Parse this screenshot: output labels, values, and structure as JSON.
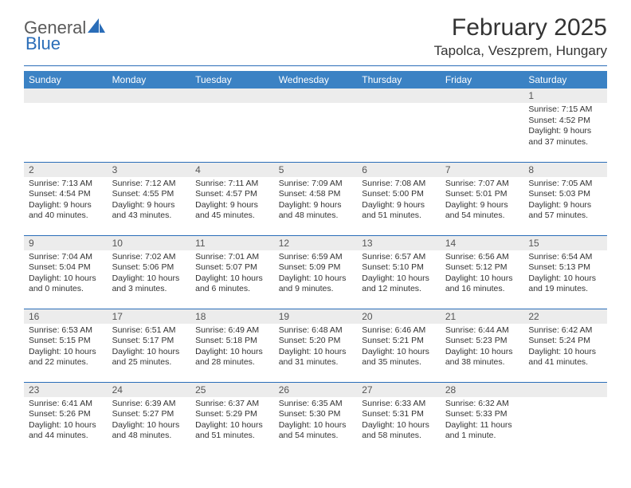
{
  "brand": {
    "part1": "General",
    "part2": "Blue"
  },
  "title": "February 2025",
  "location": "Tapolca, Veszprem, Hungary",
  "colors": {
    "header_bg": "#3b82c4",
    "divider": "#2a6db8",
    "daynum_bg": "#ececec",
    "text": "#333333",
    "logo_gray": "#5a5a5a",
    "logo_blue": "#2a6db8"
  },
  "weekdays": [
    "Sunday",
    "Monday",
    "Tuesday",
    "Wednesday",
    "Thursday",
    "Friday",
    "Saturday"
  ],
  "weeks": [
    [
      null,
      null,
      null,
      null,
      null,
      null,
      {
        "d": "1",
        "sr": "7:15 AM",
        "ss": "4:52 PM",
        "dl": "9 hours and 37 minutes."
      }
    ],
    [
      {
        "d": "2",
        "sr": "7:13 AM",
        "ss": "4:54 PM",
        "dl": "9 hours and 40 minutes."
      },
      {
        "d": "3",
        "sr": "7:12 AM",
        "ss": "4:55 PM",
        "dl": "9 hours and 43 minutes."
      },
      {
        "d": "4",
        "sr": "7:11 AM",
        "ss": "4:57 PM",
        "dl": "9 hours and 45 minutes."
      },
      {
        "d": "5",
        "sr": "7:09 AM",
        "ss": "4:58 PM",
        "dl": "9 hours and 48 minutes."
      },
      {
        "d": "6",
        "sr": "7:08 AM",
        "ss": "5:00 PM",
        "dl": "9 hours and 51 minutes."
      },
      {
        "d": "7",
        "sr": "7:07 AM",
        "ss": "5:01 PM",
        "dl": "9 hours and 54 minutes."
      },
      {
        "d": "8",
        "sr": "7:05 AM",
        "ss": "5:03 PM",
        "dl": "9 hours and 57 minutes."
      }
    ],
    [
      {
        "d": "9",
        "sr": "7:04 AM",
        "ss": "5:04 PM",
        "dl": "10 hours and 0 minutes."
      },
      {
        "d": "10",
        "sr": "7:02 AM",
        "ss": "5:06 PM",
        "dl": "10 hours and 3 minutes."
      },
      {
        "d": "11",
        "sr": "7:01 AM",
        "ss": "5:07 PM",
        "dl": "10 hours and 6 minutes."
      },
      {
        "d": "12",
        "sr": "6:59 AM",
        "ss": "5:09 PM",
        "dl": "10 hours and 9 minutes."
      },
      {
        "d": "13",
        "sr": "6:57 AM",
        "ss": "5:10 PM",
        "dl": "10 hours and 12 minutes."
      },
      {
        "d": "14",
        "sr": "6:56 AM",
        "ss": "5:12 PM",
        "dl": "10 hours and 16 minutes."
      },
      {
        "d": "15",
        "sr": "6:54 AM",
        "ss": "5:13 PM",
        "dl": "10 hours and 19 minutes."
      }
    ],
    [
      {
        "d": "16",
        "sr": "6:53 AM",
        "ss": "5:15 PM",
        "dl": "10 hours and 22 minutes."
      },
      {
        "d": "17",
        "sr": "6:51 AM",
        "ss": "5:17 PM",
        "dl": "10 hours and 25 minutes."
      },
      {
        "d": "18",
        "sr": "6:49 AM",
        "ss": "5:18 PM",
        "dl": "10 hours and 28 minutes."
      },
      {
        "d": "19",
        "sr": "6:48 AM",
        "ss": "5:20 PM",
        "dl": "10 hours and 31 minutes."
      },
      {
        "d": "20",
        "sr": "6:46 AM",
        "ss": "5:21 PM",
        "dl": "10 hours and 35 minutes."
      },
      {
        "d": "21",
        "sr": "6:44 AM",
        "ss": "5:23 PM",
        "dl": "10 hours and 38 minutes."
      },
      {
        "d": "22",
        "sr": "6:42 AM",
        "ss": "5:24 PM",
        "dl": "10 hours and 41 minutes."
      }
    ],
    [
      {
        "d": "23",
        "sr": "6:41 AM",
        "ss": "5:26 PM",
        "dl": "10 hours and 44 minutes."
      },
      {
        "d": "24",
        "sr": "6:39 AM",
        "ss": "5:27 PM",
        "dl": "10 hours and 48 minutes."
      },
      {
        "d": "25",
        "sr": "6:37 AM",
        "ss": "5:29 PM",
        "dl": "10 hours and 51 minutes."
      },
      {
        "d": "26",
        "sr": "6:35 AM",
        "ss": "5:30 PM",
        "dl": "10 hours and 54 minutes."
      },
      {
        "d": "27",
        "sr": "6:33 AM",
        "ss": "5:31 PM",
        "dl": "10 hours and 58 minutes."
      },
      {
        "d": "28",
        "sr": "6:32 AM",
        "ss": "5:33 PM",
        "dl": "11 hours and 1 minute."
      },
      null
    ]
  ],
  "labels": {
    "sunrise": "Sunrise:",
    "sunset": "Sunset:",
    "daylight": "Daylight:"
  }
}
